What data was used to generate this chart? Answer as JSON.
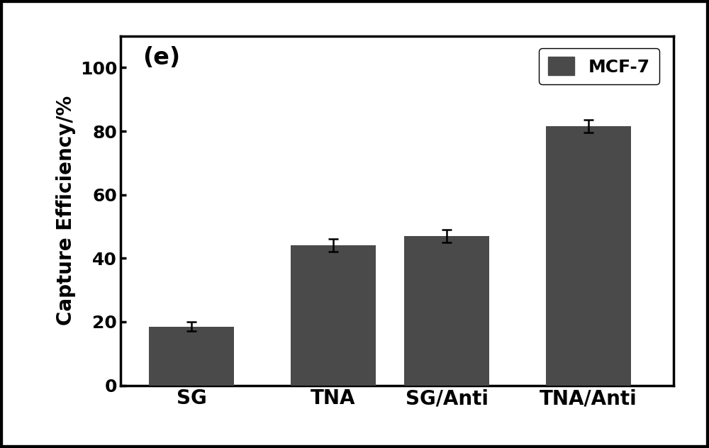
{
  "categories": [
    "SG",
    "TNA",
    "SG/Anti",
    "TNA/Anti"
  ],
  "values": [
    18.5,
    44.0,
    47.0,
    81.5
  ],
  "errors": [
    1.5,
    2.0,
    2.0,
    2.0
  ],
  "bar_color": "#4a4a4a",
  "bar_width": 0.6,
  "ylabel": "Capture Efficiency/%",
  "ylim": [
    0,
    110
  ],
  "yticks": [
    0,
    20,
    40,
    60,
    80,
    100
  ],
  "legend_label": "MCF-7",
  "panel_label": "(e)",
  "background_color": "#ffffff",
  "label_fontsize": 20,
  "tick_fontsize": 18,
  "legend_fontsize": 18,
  "panel_fontsize": 24,
  "error_capsize": 5,
  "error_linewidth": 1.8,
  "spine_linewidth": 2.5,
  "outer_border_linewidth": 6
}
